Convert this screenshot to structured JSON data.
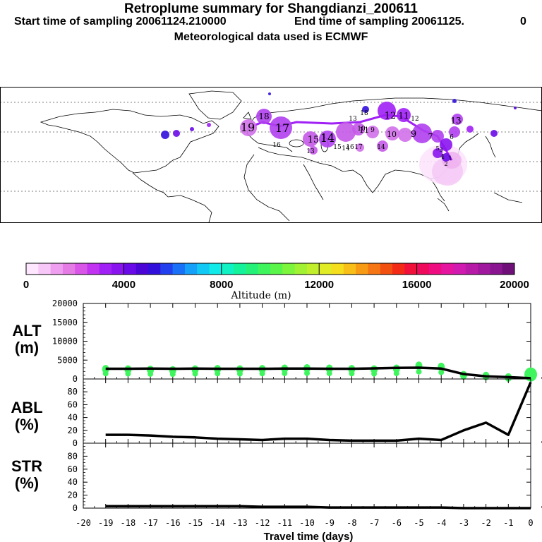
{
  "header": {
    "title": "Retroplume summary for Shangdianzi_200611",
    "start": "Start time of sampling 20061124.210000",
    "end": "End time of sampling 20061125.",
    "end_suffix": "0",
    "met": "Meteorological data used is ECMWF"
  },
  "colorbar": {
    "ticks": [
      "0",
      "4000",
      "8000",
      "12000",
      "16000",
      "20000"
    ],
    "label": "Altitude (m)",
    "colors": [
      "#ffe6ff",
      "#f7c7f7",
      "#ef9fef",
      "#e57be5",
      "#d855e8",
      "#c133f0",
      "#a020f5",
      "#8a14f0",
      "#6a0ae8",
      "#4b05d6",
      "#3210dc",
      "#2340ee",
      "#1a70f7",
      "#15a0fa",
      "#12c9f5",
      "#10eae8",
      "#10f2c3",
      "#14f29a",
      "#24f278",
      "#3ff55e",
      "#5af54a",
      "#7cf53c",
      "#a0f233",
      "#c2ef2c",
      "#e0ec25",
      "#f5de1e",
      "#f7bf18",
      "#f79b14",
      "#f57612",
      "#f25010",
      "#f22a16",
      "#f0103a",
      "#f00a5c",
      "#ef0c80",
      "#e515a0",
      "#d01ab0",
      "#b81aa8",
      "#a0189e",
      "#8a1590",
      "#6e1078"
    ]
  },
  "map": {
    "labels": [
      "19",
      "18",
      "16",
      "17",
      "15",
      "14",
      "12",
      "11",
      "10",
      "9",
      "7",
      "6",
      "5",
      "13",
      "4",
      "3",
      "2",
      "1",
      "13",
      "14",
      "15",
      "16",
      "17",
      "18",
      "19",
      "9",
      "10",
      "11",
      "12",
      "13",
      "14"
    ]
  },
  "panels": {
    "alt": {
      "label1": "ALT",
      "label2": "(m)",
      "yticks": [
        "20000",
        "15000",
        "10000",
        "5000",
        "0"
      ]
    },
    "abl": {
      "label1": "ABL",
      "label2": "(%)",
      "yticks": [
        "80",
        "60",
        "40",
        "20",
        "0"
      ]
    },
    "str": {
      "label1": "STR",
      "label2": "(%)",
      "yticks": [
        "80",
        "60",
        "40",
        "20",
        "0"
      ]
    }
  },
  "xaxis": {
    "ticks": [
      "-20",
      "-19",
      "-18",
      "-17",
      "-16",
      "-15",
      "-14",
      "-13",
      "-12",
      "-11",
      "-10",
      "-9",
      "-8",
      "-7",
      "-6",
      "-5",
      "-4",
      "-3",
      "-2",
      "-1",
      "0"
    ],
    "label": "Travel time (days)"
  },
  "chart_data": [
    {
      "type": "line",
      "title": "ALT (m)",
      "xlabel": "Travel time (days)",
      "ylabel": "ALT (m)",
      "xlim": [
        -20,
        0
      ],
      "ylim": [
        0,
        20000
      ],
      "x": [
        -19,
        -18,
        -17,
        -16,
        -15,
        -14,
        -13,
        -12,
        -11,
        -10,
        -9,
        -8,
        -7,
        -6,
        -5,
        -4,
        -3,
        -2,
        -1,
        0
      ],
      "series": [
        {
          "name": "mean altitude",
          "values": [
            2700,
            2700,
            2750,
            2700,
            2750,
            2700,
            2700,
            2700,
            2750,
            2750,
            2700,
            2700,
            2800,
            2950,
            3000,
            2750,
            1300,
            700,
            500,
            200
          ]
        },
        {
          "name": "cluster altitudes",
          "values": [
            2600,
            2500,
            2400,
            2300,
            2500,
            2600,
            2500,
            2600,
            2700,
            2800,
            2700,
            2600,
            2500,
            2700,
            3500,
            3200,
            1000,
            800,
            400,
            1200
          ]
        }
      ]
    },
    {
      "type": "line",
      "title": "ABL (%)",
      "xlabel": "Travel time (days)",
      "ylabel": "ABL (%)",
      "xlim": [
        -20,
        0
      ],
      "ylim": [
        0,
        100
      ],
      "x": [
        -19,
        -18,
        -17,
        -16,
        -15,
        -14,
        -13,
        -12,
        -11,
        -10,
        -9,
        -8,
        -7,
        -6,
        -5,
        -4,
        -3,
        -2,
        -1,
        0
      ],
      "series": [
        {
          "name": "ABL fraction",
          "values": [
            13,
            13,
            12,
            10,
            9,
            7,
            6,
            5,
            7,
            7,
            5,
            4,
            4,
            4,
            7,
            5,
            20,
            32,
            13,
            95
          ]
        }
      ]
    },
    {
      "type": "line",
      "title": "STR (%)",
      "xlabel": "Travel time (days)",
      "ylabel": "STR (%)",
      "xlim": [
        -20,
        0
      ],
      "ylim": [
        0,
        100
      ],
      "x": [
        -19,
        -18,
        -17,
        -16,
        -15,
        -14,
        -13,
        -12,
        -11,
        -10,
        -9,
        -8,
        -7,
        -6,
        -5,
        -4,
        -3,
        -2,
        -1,
        0
      ],
      "series": [
        {
          "name": "STR fraction",
          "values": [
            3,
            3,
            3,
            3,
            3,
            3,
            3,
            2,
            2,
            2,
            1,
            1,
            1,
            1,
            1,
            1,
            0,
            0,
            0,
            0
          ]
        }
      ]
    }
  ]
}
